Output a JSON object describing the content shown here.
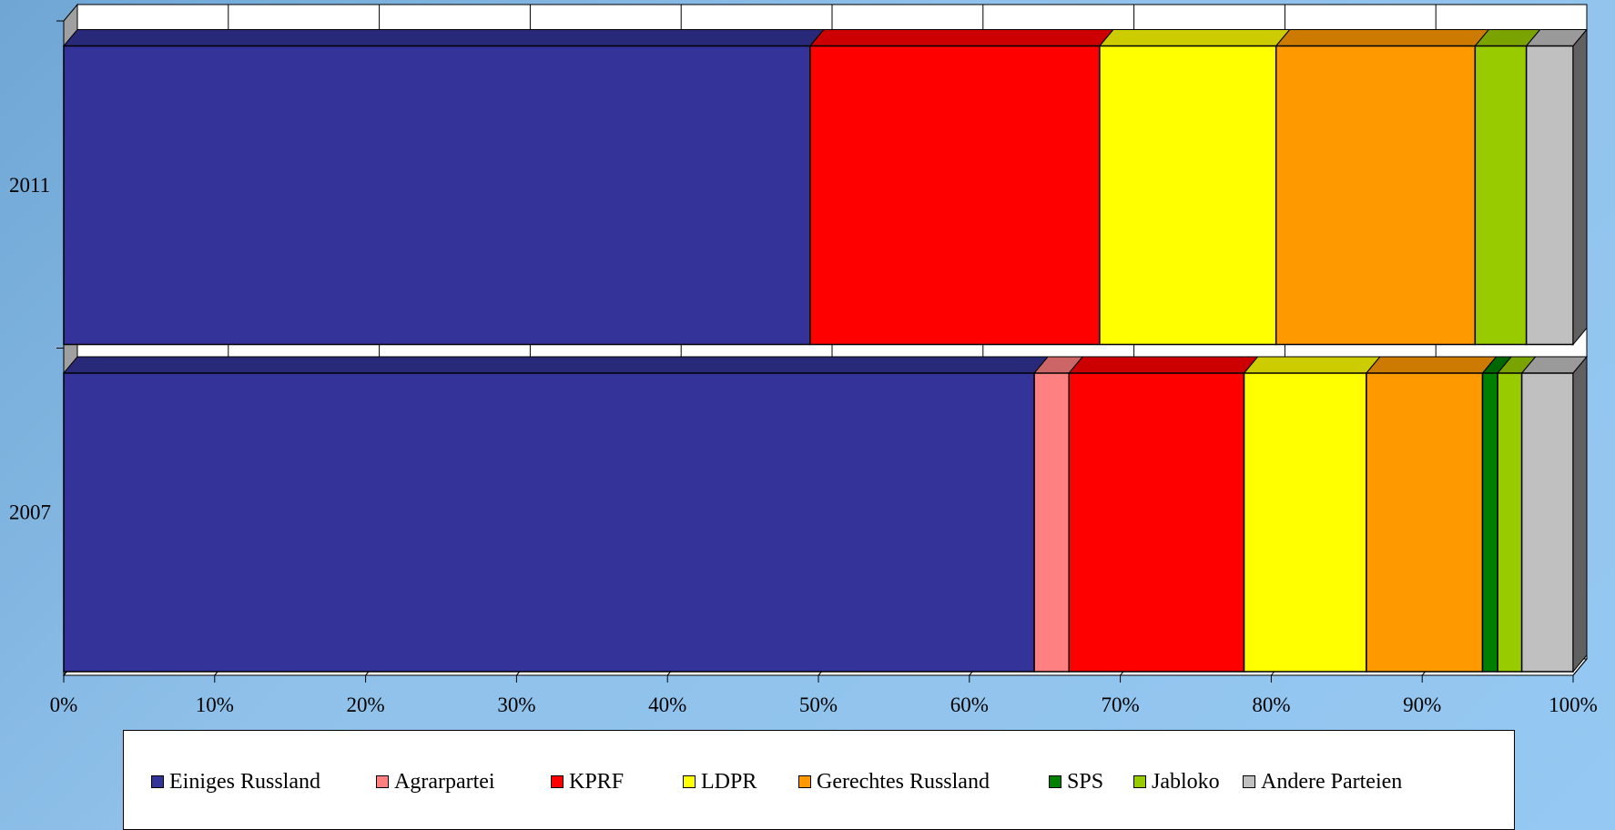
{
  "chart_data": {
    "type": "bar",
    "orientation": "horizontal",
    "stacked": "percent",
    "style": "3d",
    "categories": [
      "2011",
      "2007"
    ],
    "xlabel": "",
    "ylabel": "",
    "xlim": [
      0,
      100
    ],
    "x_ticks": [
      "0%",
      "10%",
      "20%",
      "30%",
      "40%",
      "50%",
      "60%",
      "70%",
      "80%",
      "90%",
      "100%"
    ],
    "grid": true,
    "legend_position": "bottom",
    "series": [
      {
        "name": "Einiges Russland",
        "color": "#333399",
        "values": [
          49.5,
          64.3
        ]
      },
      {
        "name": "Agrarpartei",
        "color": "#ff8080",
        "values": [
          0.0,
          2.3
        ]
      },
      {
        "name": "KPRF",
        "color": "#ff0000",
        "values": [
          19.2,
          11.6
        ]
      },
      {
        "name": "LDPR",
        "color": "#ffff00",
        "values": [
          11.7,
          8.1
        ]
      },
      {
        "name": "Gerechtes Russland",
        "color": "#ff9900",
        "values": [
          13.2,
          7.7
        ]
      },
      {
        "name": "SPS",
        "color": "#008000",
        "values": [
          0.0,
          1.0
        ]
      },
      {
        "name": "Jabloko",
        "color": "#99cc00",
        "values": [
          3.4,
          1.6
        ]
      },
      {
        "name": "Andere Parteien",
        "color": "#c0c0c0",
        "values": [
          3.1,
          3.4
        ]
      }
    ]
  }
}
